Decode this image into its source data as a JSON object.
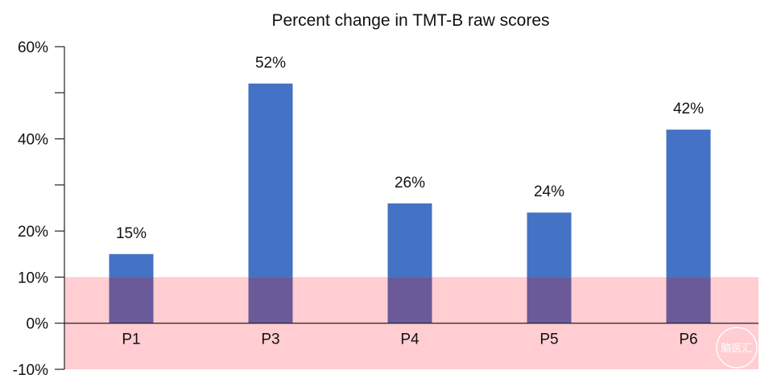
{
  "chart_data": {
    "type": "bar",
    "title": "Percent change in TMT-B raw scores",
    "xlabel": "",
    "ylabel": "",
    "categories": [
      "P1",
      "P3",
      "P4",
      "P5",
      "P6"
    ],
    "values": [
      15,
      52,
      26,
      24,
      42
    ],
    "data_labels": [
      "15%",
      "52%",
      "26%",
      "24%",
      "42%"
    ],
    "ylim": [
      -10,
      60
    ],
    "y_ticks": [
      -10,
      0,
      10,
      20,
      40,
      60
    ],
    "y_tick_labels": [
      "-10%",
      "0%",
      "10%",
      "20%",
      "40%",
      "60%"
    ],
    "y_minor_ticks": [
      30,
      50
    ],
    "grid": false,
    "shaded_band": {
      "from": -10,
      "to": 10,
      "color": "#ffcdd2"
    },
    "colors": {
      "bar": "#4472c4",
      "bar_overlap": "#6a5a9a",
      "band": "#ffcdd2"
    }
  },
  "watermark": {
    "text": "脑医汇"
  }
}
